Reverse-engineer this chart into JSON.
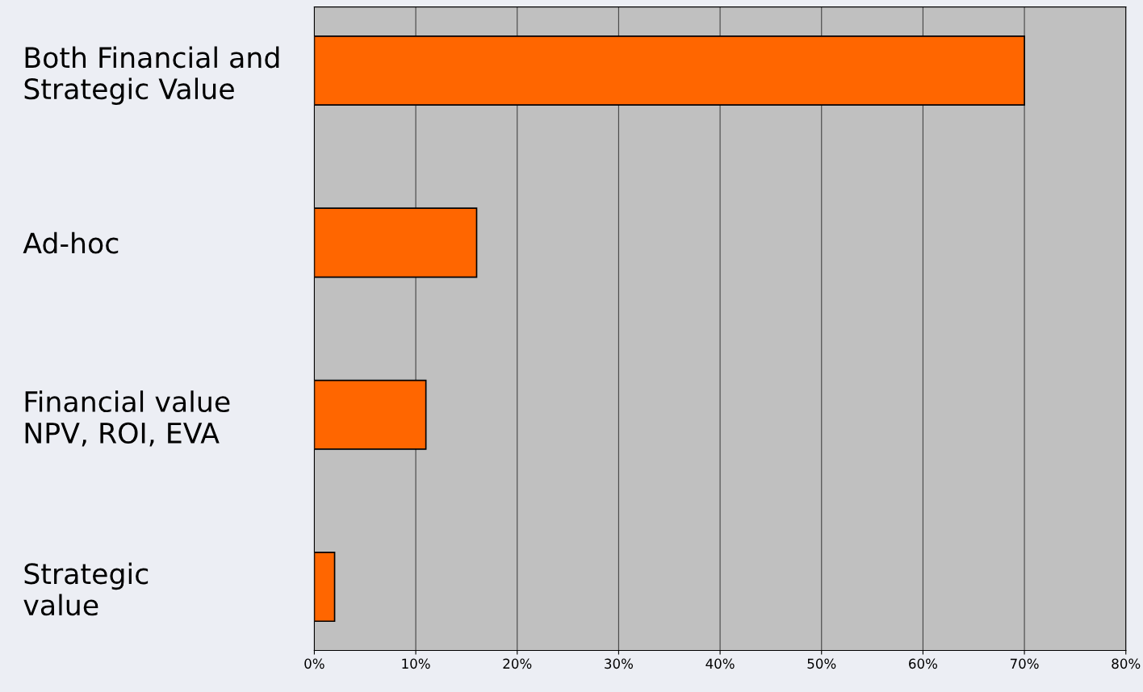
{
  "chart_data": {
    "type": "bar",
    "orientation": "horizontal",
    "categories": [
      "Both Financial and\nStrategic Value",
      "Ad-hoc",
      "Financial value\nNPV, ROI, EVA",
      "Strategic\nvalue"
    ],
    "values": [
      70,
      16,
      11,
      2
    ],
    "color": "#ff6600",
    "xlim": [
      0,
      80
    ],
    "xticks": [
      {
        "value": 0,
        "label": "0%"
      },
      {
        "value": 10,
        "label": "10%"
      },
      {
        "value": 20,
        "label": "20%"
      },
      {
        "value": 30,
        "label": "30%"
      },
      {
        "value": 40,
        "label": "40%"
      },
      {
        "value": 50,
        "label": "50%"
      },
      {
        "value": 60,
        "label": "60%"
      },
      {
        "value": 70,
        "label": "70%"
      },
      {
        "value": 80,
        "label": "80%"
      }
    ],
    "grid": "x",
    "legend": false
  }
}
